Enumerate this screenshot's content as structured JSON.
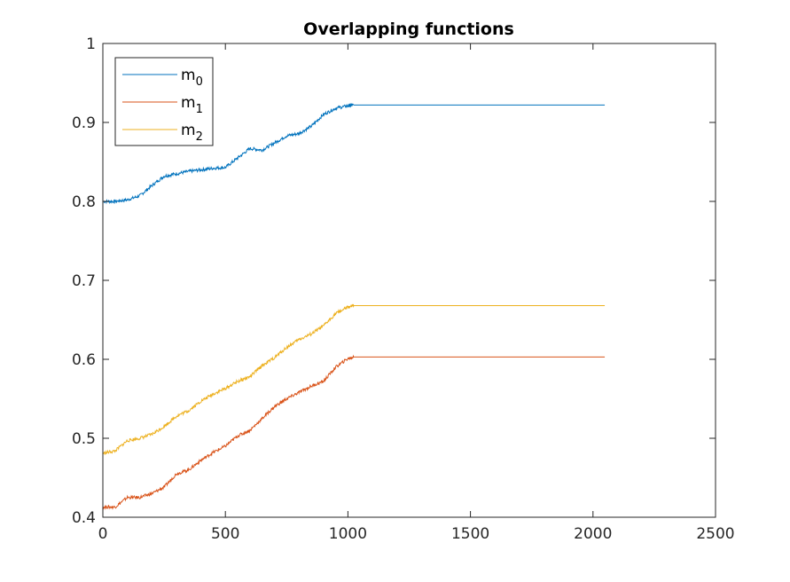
{
  "chart_data": {
    "type": "line",
    "title": "Overlapping functions",
    "xlabel": "",
    "ylabel": "",
    "xlim": [
      0,
      2500
    ],
    "ylim": [
      0.4,
      1
    ],
    "x_ticks": [
      "0",
      "500",
      "1000",
      "1500",
      "2000",
      "2500"
    ],
    "y_ticks": [
      "0.4",
      "0.5",
      "0.6",
      "0.7",
      "0.8",
      "0.9",
      "1"
    ],
    "grid": false,
    "legend_position": "top-left",
    "series": [
      {
        "name": "m0",
        "legend_main": "m",
        "legend_sub": "0",
        "color": "#0072BD",
        "x": [
          0,
          50,
          100,
          150,
          200,
          250,
          300,
          350,
          400,
          450,
          500,
          550,
          600,
          650,
          700,
          750,
          800,
          850,
          900,
          950,
          1000,
          1024,
          2048
        ],
        "y": [
          0.8,
          0.8,
          0.802,
          0.807,
          0.82,
          0.832,
          0.835,
          0.838,
          0.84,
          0.842,
          0.843,
          0.855,
          0.867,
          0.865,
          0.874,
          0.883,
          0.886,
          0.895,
          0.91,
          0.918,
          0.921,
          0.922,
          0.922
        ]
      },
      {
        "name": "m1",
        "legend_main": "m",
        "legend_sub": "1",
        "color": "#D95319",
        "x": [
          0,
          50,
          100,
          150,
          200,
          250,
          300,
          350,
          400,
          450,
          500,
          550,
          600,
          650,
          700,
          750,
          800,
          850,
          900,
          950,
          1000,
          1024,
          2048
        ],
        "y": [
          0.413,
          0.413,
          0.425,
          0.425,
          0.43,
          0.438,
          0.455,
          0.46,
          0.472,
          0.482,
          0.49,
          0.503,
          0.51,
          0.525,
          0.54,
          0.55,
          0.558,
          0.566,
          0.572,
          0.59,
          0.601,
          0.603,
          0.603
        ]
      },
      {
        "name": "m2",
        "legend_main": "m",
        "legend_sub": "2",
        "color": "#EDB120",
        "x": [
          0,
          50,
          100,
          150,
          200,
          250,
          300,
          350,
          400,
          450,
          500,
          550,
          600,
          650,
          700,
          750,
          800,
          850,
          900,
          950,
          1000,
          1024,
          2048
        ],
        "y": [
          0.481,
          0.484,
          0.497,
          0.5,
          0.505,
          0.515,
          0.528,
          0.535,
          0.547,
          0.556,
          0.563,
          0.572,
          0.578,
          0.592,
          0.602,
          0.615,
          0.625,
          0.632,
          0.642,
          0.658,
          0.666,
          0.668,
          0.668
        ]
      }
    ]
  }
}
